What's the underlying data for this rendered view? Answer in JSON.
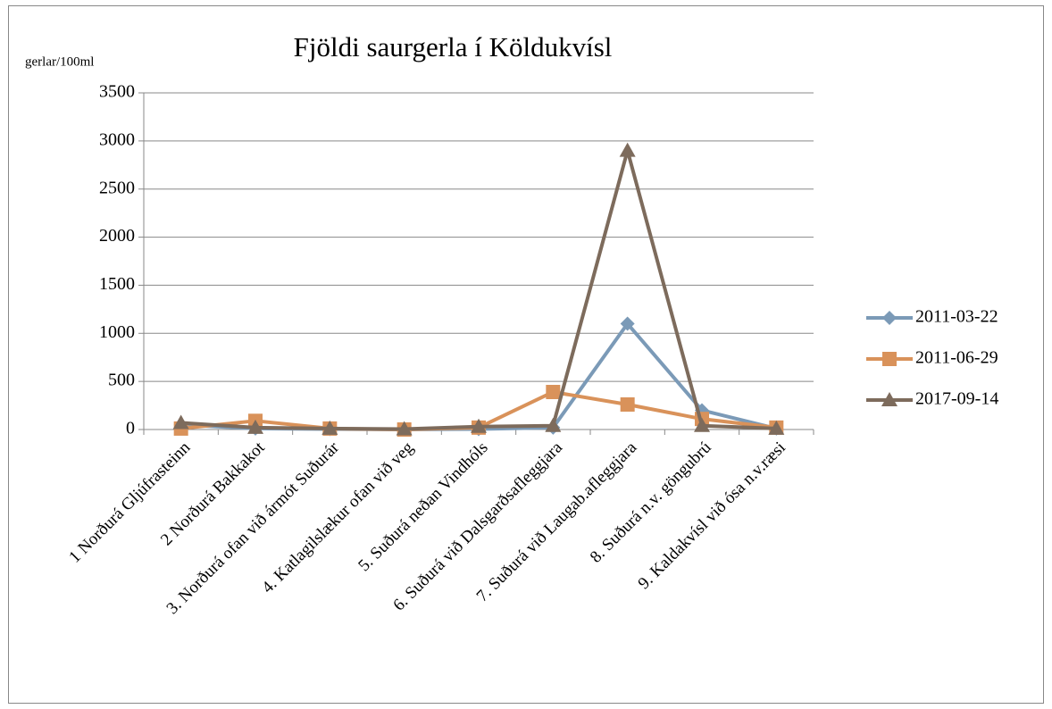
{
  "chart_data": {
    "type": "line",
    "title": "Fjöldi saurgerla í Köldukvísl",
    "y_label": "gerlar/100ml",
    "categories": [
      "1 Norðurá Gljúfrasteinn",
      "2 Norðurá Bakkakot",
      "3. Norðurá ofan við ármót Suðurár",
      "4. Katlagilslækur ofan við veg",
      "5. Suðurá neðan Vindhóls",
      "6. Suðurá  við Dalsgarðsafleggjara",
      "7. Suðurá við Laugab.afleggjara",
      "8. Suðurá n.v. göngubrú",
      "9. Kaldakvísl við ósa n.v.ræsi"
    ],
    "series": [
      {
        "name": "2011-03-22",
        "color": "#7b9ab7",
        "marker": "diamond",
        "values": [
          50,
          10,
          5,
          0,
          5,
          20,
          1100,
          200,
          10
        ]
      },
      {
        "name": "2011-06-29",
        "color": "#d9925a",
        "marker": "square",
        "values": [
          10,
          90,
          10,
          0,
          20,
          390,
          260,
          110,
          20
        ]
      },
      {
        "name": "2017-09-14",
        "color": "#7d6b5c",
        "marker": "triangle",
        "values": [
          70,
          20,
          10,
          5,
          30,
          40,
          2900,
          40,
          10
        ]
      }
    ],
    "ylim": [
      0,
      3500
    ],
    "yticks": [
      0,
      500,
      1000,
      1500,
      2000,
      2500,
      3000,
      3500
    ],
    "grid": true,
    "legend": "right"
  }
}
